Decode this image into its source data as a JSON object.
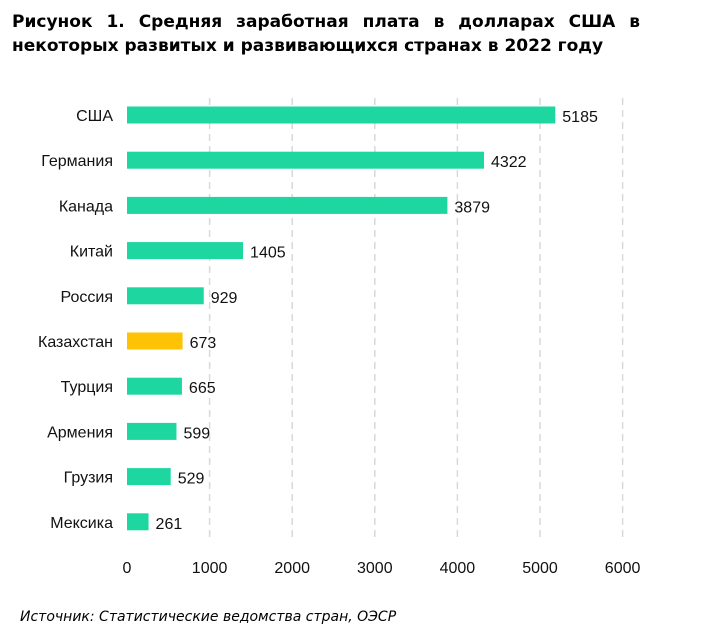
{
  "figure": {
    "title": "Рисунок 1. Средняя заработная плата в долларах США в некоторых развитых и развивающихся странах в 2022 году",
    "source": "Источник: Статистические ведомства стран, ОЭСР"
  },
  "chart_data": {
    "type": "bar",
    "orientation": "horizontal",
    "title": "Рисунок 1. Средняя заработная плата в долларах США в некоторых развитых и развивающихся странах в 2022 году",
    "categories": [
      "США",
      "Германия",
      "Канада",
      "Китай",
      "Россия",
      "Казахстан",
      "Турция",
      "Армения",
      "Грузия",
      "Мексика"
    ],
    "values": [
      5185,
      4322,
      3879,
      1405,
      929,
      673,
      665,
      599,
      529,
      261
    ],
    "highlight_category": "Казахстан",
    "xlim": [
      0,
      6000
    ],
    "xticks": [
      0,
      1000,
      2000,
      3000,
      4000,
      5000,
      6000
    ],
    "xlabel": "",
    "ylabel": "",
    "grid": "vertical dashed",
    "legend": "none",
    "colors": {
      "bar": "#1ED7A0",
      "highlight": "#FFC305",
      "grid": "#D9D9D9"
    }
  }
}
